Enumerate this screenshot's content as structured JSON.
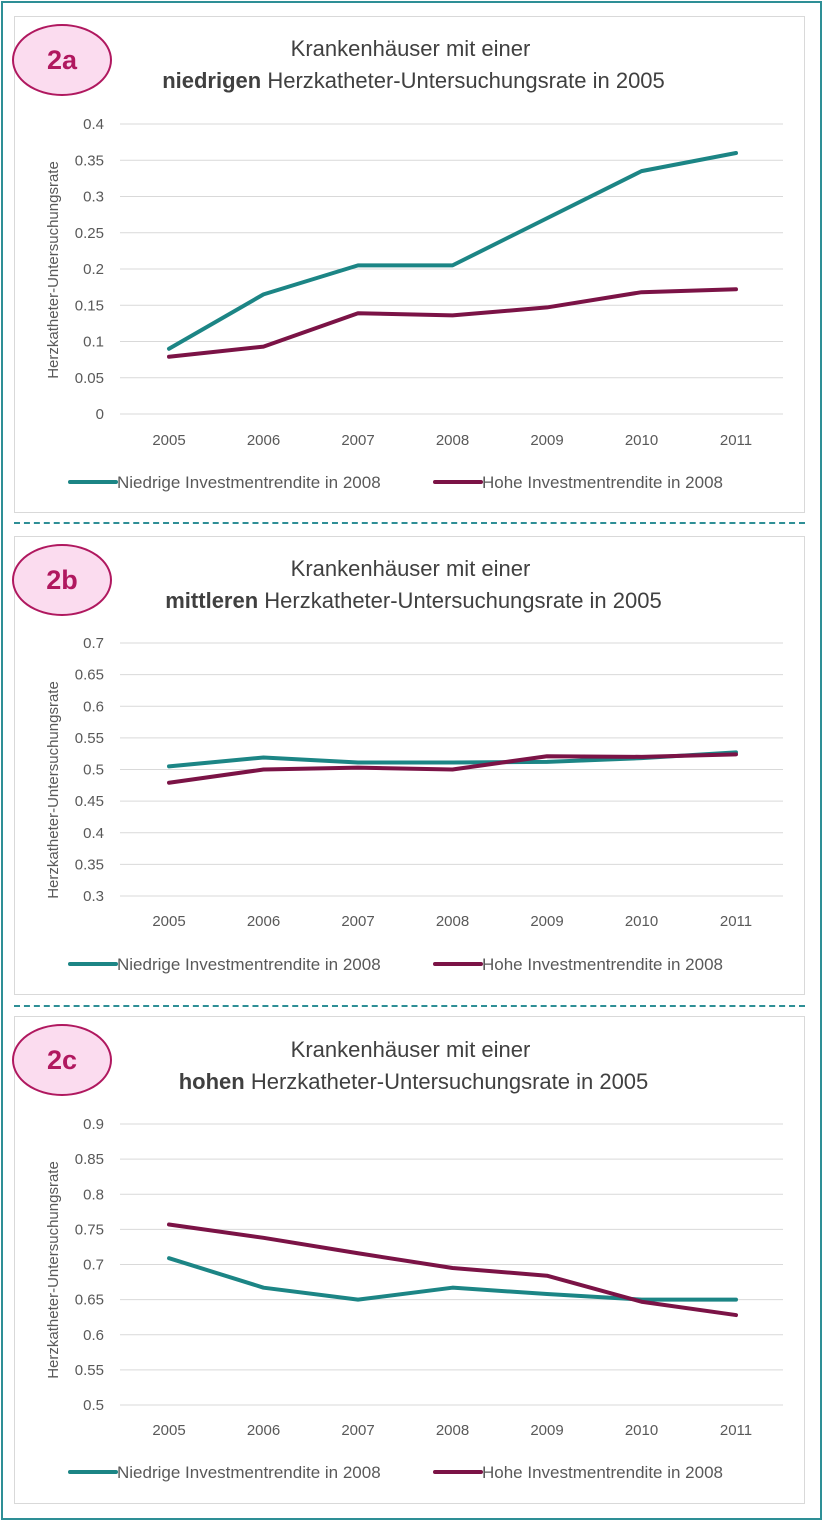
{
  "colors": {
    "teal": "#1c8585",
    "maroon": "#7b1346",
    "frame": "#2e8f96",
    "badge_fill": "#fbdcef",
    "badge_text": "#b0185f"
  },
  "panels": [
    {
      "badge": "2a",
      "title_line1": "Krankenhäuser mit einer",
      "title_bold": "niedrigen",
      "title_rest": " Herzkatheter-Untersuchungsrate in 2005"
    },
    {
      "badge": "2b",
      "title_line1": "Krankenhäuser mit einer",
      "title_bold": "mittleren",
      "title_rest": " Herzkatheter-Untersuchungsrate in 2005"
    },
    {
      "badge": "2c",
      "title_line1": "Krankenhäuser mit einer",
      "title_bold": "hohen",
      "title_rest": " Herzkatheter-Untersuchungsrate in 2005"
    }
  ],
  "chart_data": [
    {
      "type": "line",
      "ylabel": "Herzkatheter-Untersuchungsrate",
      "x": [
        "2005",
        "2006",
        "2007",
        "2008",
        "2009",
        "2010",
        "2011"
      ],
      "ylim": [
        0,
        0.4
      ],
      "yticks": [
        "0",
        "0.05",
        "0.1",
        "0.15",
        "0.2",
        "0.25",
        "0.3",
        "0.35",
        "0.4"
      ],
      "grid": true,
      "legend": "bottom",
      "series": [
        {
          "name": "Niedrige Investmentrendite in 2008",
          "color": "#1c8585",
          "values": [
            0.09,
            0.165,
            0.205,
            0.205,
            0.27,
            0.335,
            0.36
          ]
        },
        {
          "name": "Hohe Investmentrendite in 2008",
          "color": "#7b1346",
          "values": [
            0.079,
            0.093,
            0.139,
            0.136,
            0.147,
            0.168,
            0.172
          ]
        }
      ]
    },
    {
      "type": "line",
      "ylabel": "Herzkatheter-Untersuchungsrate",
      "x": [
        "2005",
        "2006",
        "2007",
        "2008",
        "2009",
        "2010",
        "2011"
      ],
      "ylim": [
        0.3,
        0.7
      ],
      "yticks": [
        "0.3",
        "0.35",
        "0.4",
        "0.45",
        "0.5",
        "0.55",
        "0.6",
        "0.65",
        "0.7"
      ],
      "grid": true,
      "legend": "bottom",
      "series": [
        {
          "name": "Niedrige Investmentrendite in 2008",
          "color": "#1c8585",
          "values": [
            0.505,
            0.519,
            0.511,
            0.511,
            0.512,
            0.518,
            0.527
          ]
        },
        {
          "name": "Hohe Investmentrendite in 2008",
          "color": "#7b1346",
          "values": [
            0.479,
            0.5,
            0.503,
            0.5,
            0.521,
            0.52,
            0.524
          ]
        }
      ]
    },
    {
      "type": "line",
      "ylabel": "Herzkatheter-Untersuchungsrate",
      "x": [
        "2005",
        "2006",
        "2007",
        "2008",
        "2009",
        "2010",
        "2011"
      ],
      "ylim": [
        0.5,
        0.9
      ],
      "yticks": [
        "0.5",
        "0.55",
        "0.6",
        "0.65",
        "0.7",
        "0.75",
        "0.8",
        "0.85",
        "0.9"
      ],
      "grid": true,
      "legend": "bottom",
      "series": [
        {
          "name": "Niedrige Investmentrendite in 2008",
          "color": "#1c8585",
          "values": [
            0.709,
            0.667,
            0.65,
            0.667,
            0.658,
            0.65,
            0.65
          ]
        },
        {
          "name": "Hohe Investmentrendite in 2008",
          "color": "#7b1346",
          "values": [
            0.757,
            0.738,
            0.716,
            0.695,
            0.684,
            0.647,
            0.628
          ]
        }
      ]
    }
  ]
}
